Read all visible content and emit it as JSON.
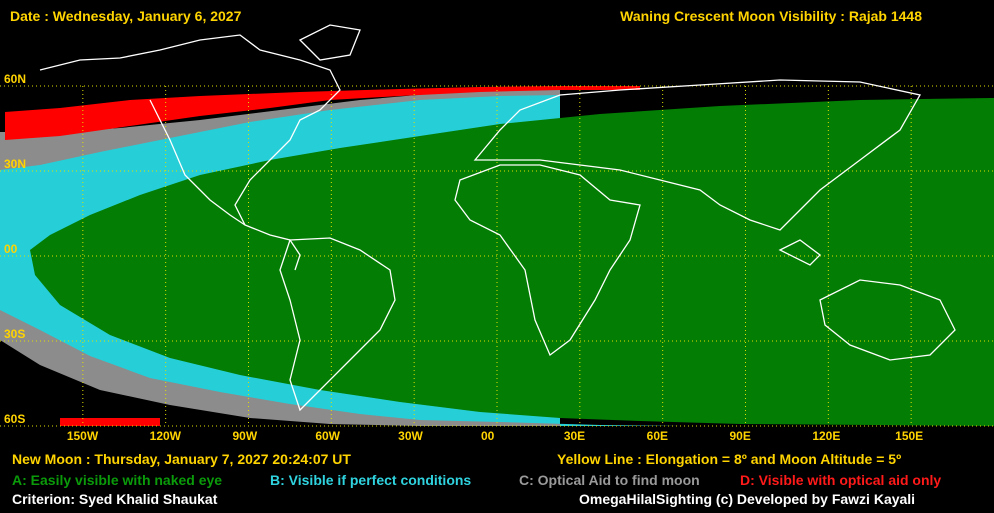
{
  "header": {
    "date": "Date : Wednesday, January 6, 2027",
    "title": "Waning Crescent Moon Visibility : Rajab 1448"
  },
  "map": {
    "latitude_labels": [
      "60N",
      "30N",
      "00",
      "30S",
      "60S"
    ],
    "latitude_values": [
      60,
      30,
      0,
      -30,
      -60
    ],
    "longitude_labels": [
      "150W",
      "120W",
      "90W",
      "60W",
      "30W",
      "00",
      "30E",
      "60E",
      "90E",
      "120E",
      "150E"
    ],
    "longitude_values": [
      -150,
      -120,
      -90,
      -60,
      -30,
      0,
      30,
      60,
      90,
      120,
      150
    ],
    "colors": {
      "zone_a": "#037d03",
      "zone_b": "#26cfd8",
      "zone_c": "#8c8c8c",
      "zone_d": "#ff0000",
      "grid": "#e0e000",
      "coast": "#ffffff"
    }
  },
  "footer": {
    "new_moon": "New Moon : Thursday, January 7, 2027  20:24:07  UT",
    "yellow_line": "Yellow Line : Elongation = 8º  and Moon Altitude = 5º",
    "legend_a": "A: Easily visible with naked eye",
    "legend_b": "B: Visible if perfect conditions",
    "legend_c": "C: Optical Aid to find moon",
    "legend_d": "D: Visible with optical aid only",
    "criterion": "Criterion: Syed Khalid Shaukat",
    "credit": "OmegaHilalSighting  (c)  Developed by Fawzi Kayali"
  }
}
